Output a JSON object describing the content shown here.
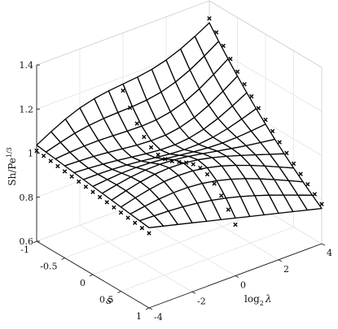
{
  "chart_data": {
    "type": "surface",
    "xlabel": "s",
    "ylabel_base": "log",
    "ylabel_sub": "2",
    "ylabel_var": "λ",
    "zlabel_base": "Sh/Pe",
    "zlabel_sup": "1/3",
    "xlim": [
      -1,
      1
    ],
    "ylim": [
      -4,
      4
    ],
    "zlim": [
      0.6,
      1.4
    ],
    "x_ticks": [
      "-1",
      "-0.5",
      "0",
      "0.5",
      "1"
    ],
    "y_ticks": [
      "-4",
      "-2",
      "0",
      "2",
      "4"
    ],
    "z_ticks": [
      "0.6",
      "0.8",
      "1",
      "1.2",
      "1.4"
    ],
    "grid": true,
    "series": [
      {
        "kind": "surface",
        "description_rows": "s from -1 to 1",
        "description_cols": "log2 λ from -4 to 4"
      },
      {
        "kind": "markers",
        "marker": "x"
      }
    ],
    "s_grid": [
      -1,
      -0.833,
      -0.667,
      -0.5,
      -0.333,
      -0.167,
      0,
      0.167,
      0.333,
      0.5,
      0.667,
      0.833,
      1
    ],
    "l_grid": [
      -4,
      -3.333,
      -2.667,
      -2,
      -1.333,
      -0.667,
      0,
      0.667,
      1.333,
      2,
      2.667,
      3.333,
      4
    ],
    "marker_l": [
      -4,
      0,
      4
    ]
  }
}
